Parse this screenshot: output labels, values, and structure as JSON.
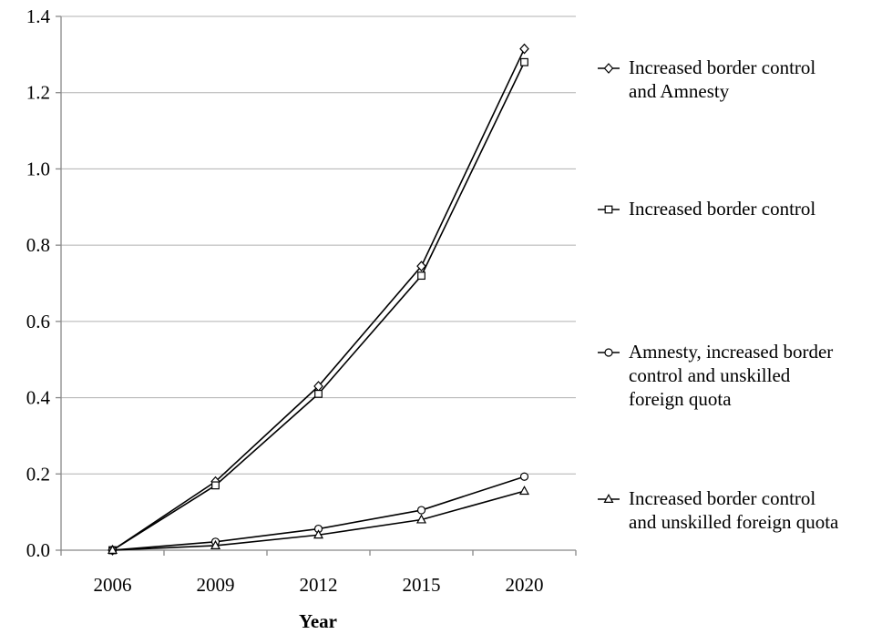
{
  "chart_data": {
    "type": "line",
    "title": "",
    "xlabel": "Year",
    "ylabel": "",
    "categories": [
      "2006",
      "2009",
      "2012",
      "2015",
      "2020"
    ],
    "ylim": [
      0,
      1.4
    ],
    "yticks": [
      "0.0",
      "0.2",
      "0.4",
      "0.6",
      "0.8",
      "1.0",
      "1.2",
      "1.4"
    ],
    "grid": "horizontal",
    "legend_position": "right",
    "series": [
      {
        "name": "Increased border control and Amnesty",
        "legend_lines": [
          "Increased border control",
          "and Amnesty"
        ],
        "marker": "diamond",
        "values": [
          0.0,
          0.18,
          0.43,
          0.745,
          1.315
        ]
      },
      {
        "name": "Increased border control",
        "legend_lines": [
          "Increased border control"
        ],
        "marker": "square",
        "values": [
          0.0,
          0.17,
          0.41,
          0.72,
          1.28
        ]
      },
      {
        "name": "Amnesty, increased border control and unskilled foreign quota",
        "legend_lines": [
          "Amnesty, increased border",
          "control and unskilled",
          "foreign quota"
        ],
        "marker": "circle",
        "values": [
          0.0,
          0.022,
          0.056,
          0.105,
          0.193
        ]
      },
      {
        "name": "Increased border control and unskilled foreign quota",
        "legend_lines": [
          "Increased border control",
          "and unskilled foreign quota"
        ],
        "marker": "triangle",
        "values": [
          0.0,
          0.012,
          0.04,
          0.08,
          0.155
        ]
      }
    ]
  }
}
